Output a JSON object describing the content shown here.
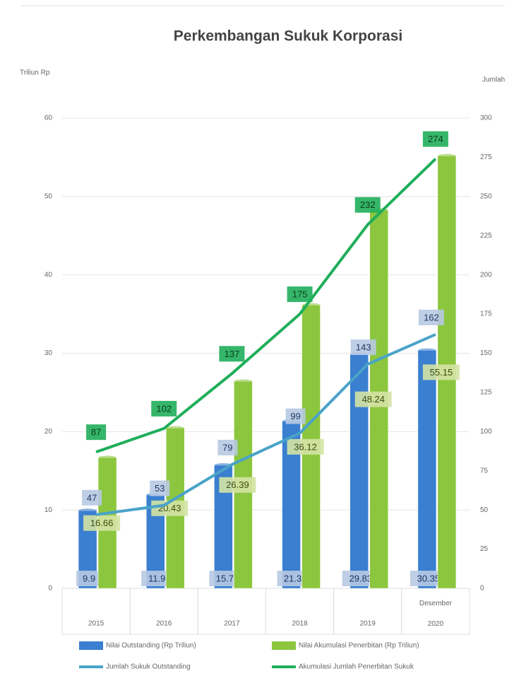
{
  "chart_data": {
    "type": "bar-line",
    "title": "Perkembangan Sukuk Korporasi",
    "y_label": "Triliun Rp",
    "y2_label": "Jumlah",
    "categories": [
      "2015",
      "2016",
      "2017",
      "2018",
      "2019",
      "Desember 2020"
    ],
    "series": [
      {
        "name": "Nilai Outstanding (Rp Triliun)",
        "type": "bar",
        "color": "#3a7fd0",
        "values": [
          9.9,
          11.9,
          15.7,
          21.3,
          29.83,
          30.35
        ]
      },
      {
        "name": "Nilai Akumulasi Penerbitan (Rp Triliun)",
        "type": "bar",
        "color": "#8cc63f",
        "values": [
          16.66,
          20.43,
          26.39,
          36.12,
          48.24,
          55.15
        ]
      },
      {
        "name": "Jumlah Sukuk Outstanding",
        "type": "line",
        "axis": "y2",
        "color": "#4aa3c8",
        "values": [
          47,
          53,
          79,
          99,
          143,
          162
        ]
      },
      {
        "name": "Akumulasi Jumlah Penerbitan Sukuk",
        "type": "line",
        "axis": "y2",
        "color": "#1fae5a",
        "values": [
          87,
          102,
          137,
          175,
          232,
          274
        ]
      }
    ],
    "ylim": [
      0,
      60
    ],
    "yticks": [
      0,
      10,
      20,
      30,
      40,
      50,
      60
    ],
    "y2lim": [
      0,
      300
    ],
    "y2ticks": [
      0,
      25,
      50,
      75,
      100,
      125,
      150,
      175,
      200,
      225,
      250,
      275,
      300
    ],
    "grid": true
  }
}
